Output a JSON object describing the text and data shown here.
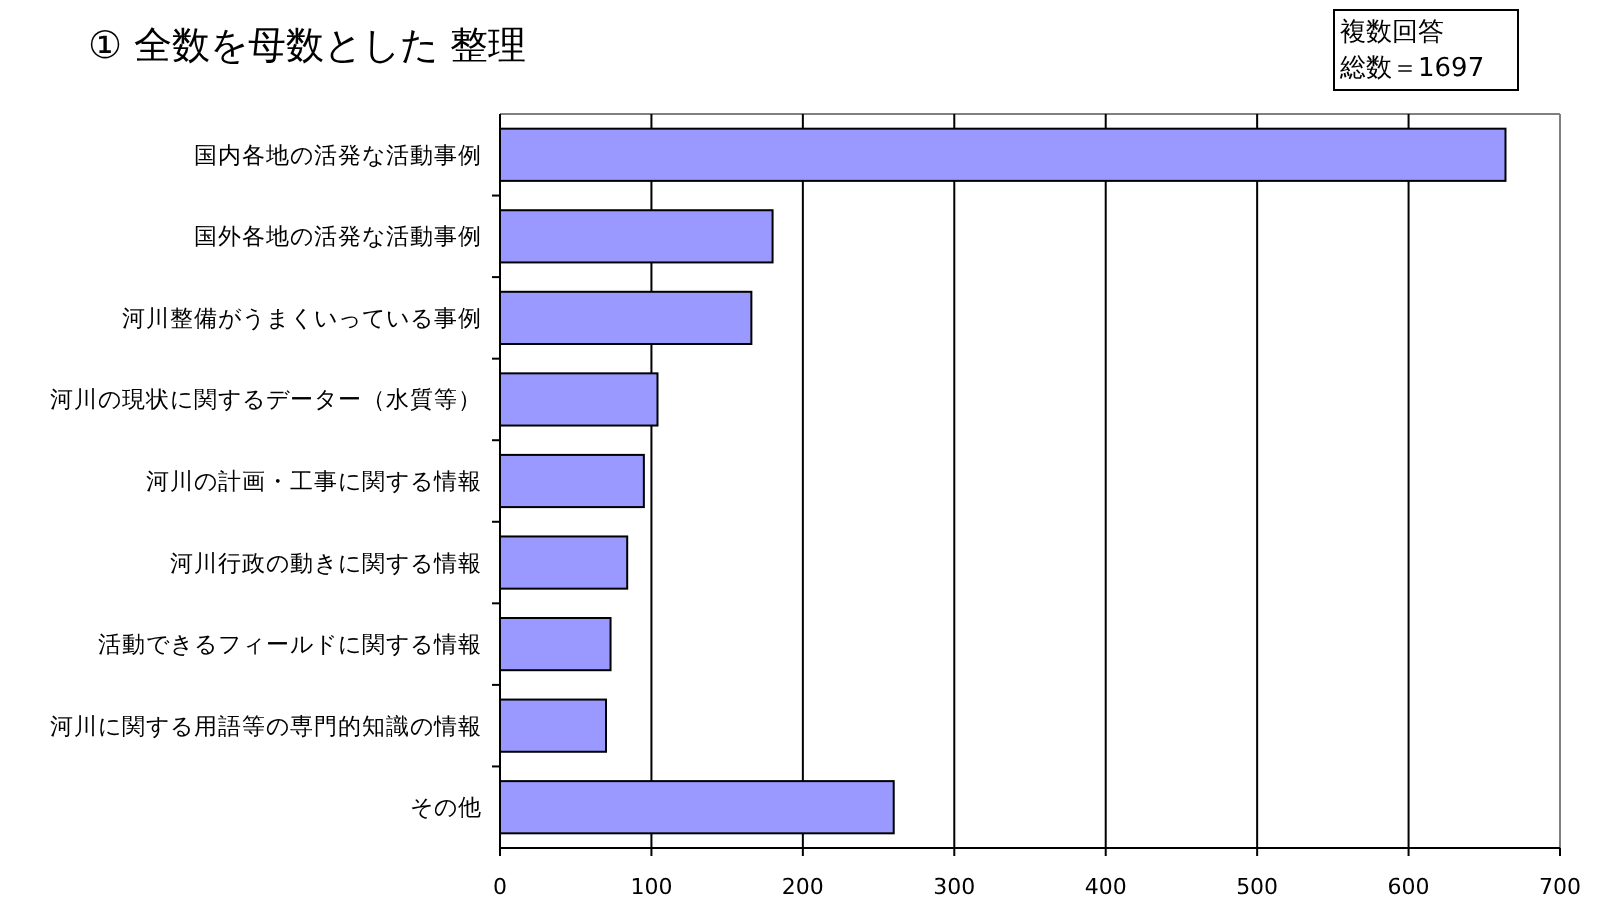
{
  "chart_data": {
    "type": "bar",
    "orientation": "horizontal",
    "title": "① 全数を母数とした 整理",
    "annotations": [
      "複数回答",
      "総数＝1697"
    ],
    "categories": [
      "国内各地の活発な活動事例",
      "国外各地の活発な活動事例",
      "河川整備がうまくいっている事例",
      "河川の現状に関するデーター（水質等）",
      "河川の計画・工事に関する情報",
      "河川行政の動きに関する情報",
      "活動できるフィールドに関する情報",
      "河川に関する用語等の専門的知識の情報",
      "その他"
    ],
    "values": [
      664,
      180,
      166,
      104,
      95,
      84,
      73,
      70,
      260
    ],
    "color": "#9999ff",
    "xlim": [
      0,
      700
    ],
    "xticks": [
      0,
      100,
      200,
      300,
      400,
      500,
      600,
      700
    ],
    "grid": "x"
  }
}
